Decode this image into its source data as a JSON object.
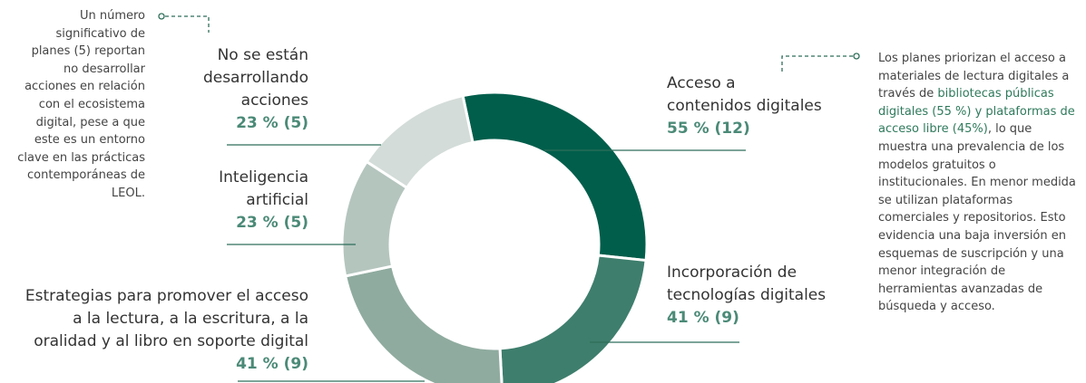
{
  "chart_data": {
    "type": "donut",
    "categories": [
      "Acceso a\ncontenidos digitales",
      "Incorporación de\ntecnologías digitales",
      "Estrategias para promover el acceso\na la lectura, a la escritura, a la\noralidad y al libro en soporte digital",
      "Inteligencia\nartificial",
      "No se están\ndesarrollando\nacciones"
    ],
    "values": [
      55,
      41,
      41,
      23,
      23
    ],
    "counts": [
      12,
      9,
      9,
      5,
      5
    ],
    "value_labels": [
      "55 % (12)",
      "41 % (9)",
      "41 % (9)",
      "23 % (5)",
      "23 % (5)"
    ],
    "colors": [
      "#005e4b",
      "#3e7e6c",
      "#8fab9f",
      "#b4c5be",
      "#d3dcd8"
    ],
    "left_note": "Un número\nsignificativo de\nplanes (5) reportan\nno desarrollar\nacciones en relación\ncon el ecosistema\ndigital, pese a que\neste es un entorno\nclave en las prácticas\ncontemporáneas de\nLEOL.",
    "right_note": [
      {
        "text": "Los planes priorizan el acceso a materiales de lectura digitales a través de ",
        "highlight": false
      },
      {
        "text": "bibliotecas públicas digitales (55 %) y plataformas de acceso libre (45%)",
        "highlight": true
      },
      {
        "text": ", lo que muestra una prevalencia de los modelos gratuitos o institucionales. En menor medida se utilizan plataformas comerciales y repositorios. Esto evidencia una baja inversión en esquemas de suscripción y una menor integración de herramientas avanzadas de búsqueda y acceso.",
        "highlight": false
      }
    ]
  }
}
